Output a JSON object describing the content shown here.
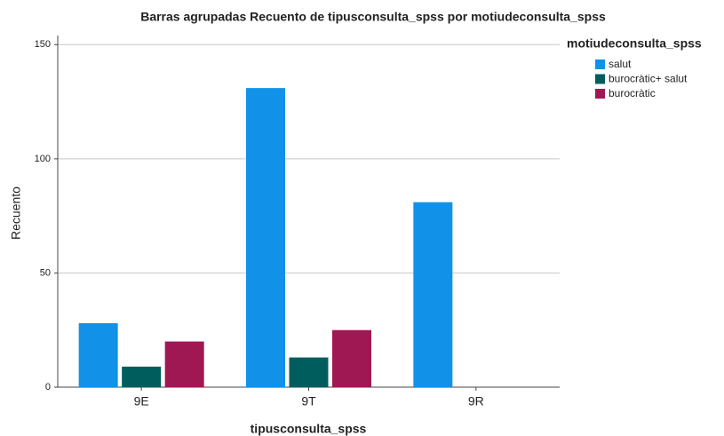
{
  "chart_data": {
    "type": "bar",
    "title": "Barras agrupadas Recuento de tipusconsulta_spss por motiudeconsulta_spss",
    "x_label": "tipusconsulta_spss",
    "y_label": "Recuento",
    "legend_title": "motiudeconsulta_spss",
    "legend_position": "right",
    "categories": [
      "9E",
      "9T",
      "9R"
    ],
    "series": [
      {
        "name": "salut",
        "color": "#1192e8",
        "values": [
          28,
          131,
          81
        ]
      },
      {
        "name": "burocràtic+ salut",
        "color": "#005d5d",
        "values": [
          9,
          13,
          0
        ]
      },
      {
        "name": "burocràtic",
        "color": "#9f1853",
        "values": [
          20,
          25,
          0
        ]
      }
    ],
    "ylim": [
      0,
      154
    ],
    "yticks": [
      0,
      50,
      100,
      150
    ],
    "grid": true
  }
}
